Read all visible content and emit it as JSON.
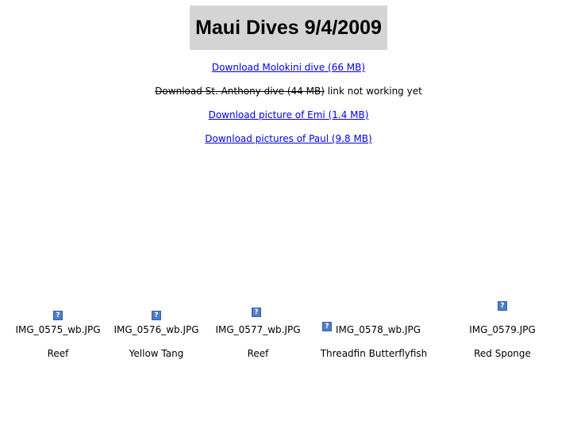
{
  "page": {
    "title": "Maui Dives 9/4/2009"
  },
  "downloads": [
    {
      "label": "Download Molokini dive (66 MB)"
    },
    {
      "label": "Download St. Anthony dive (44 MB)",
      "note": " link not working yet"
    },
    {
      "label": "Download picture of Emi (1.4 MB)"
    },
    {
      "label": "Download pictures of Paul (9.8 MB)"
    }
  ],
  "gallery": [
    {
      "filename": "IMG_0575_wb.JPG",
      "caption": "Reef",
      "icon": "broken-image-icon"
    },
    {
      "filename": "IMG_0576_wb.JPG",
      "caption": "Yellow Tang",
      "icon": "broken-image-icon"
    },
    {
      "filename": "IMG_0577_wb.JPG",
      "caption": "Reef",
      "icon": "broken-image-icon"
    },
    {
      "filename": "IMG_0578_wb.JPG",
      "caption": "Threadfin Butterflyfish",
      "icon": "broken-image-icon"
    },
    {
      "filename": "IMG_0579.JPG",
      "caption": "Red Sponge",
      "icon": "broken-image-icon"
    }
  ],
  "colors": {
    "link": "#0000ee",
    "title_background": "#d4d4d4"
  }
}
